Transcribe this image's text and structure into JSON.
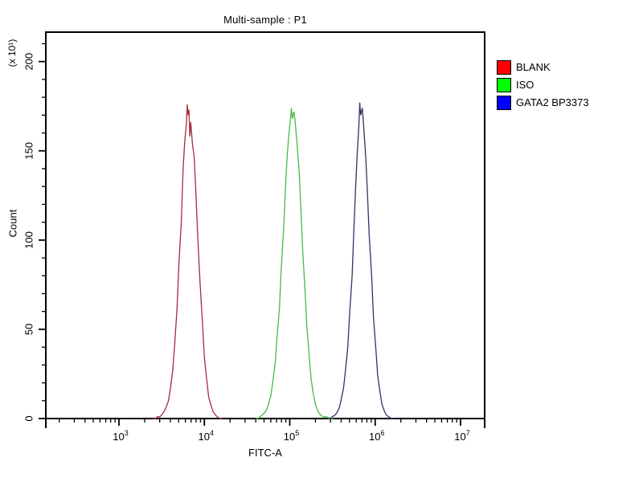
{
  "window": {
    "background": "#ffffff"
  },
  "chart_data": {
    "type": "line",
    "title": "Multi-sample : P1",
    "xlabel": "FITC-A",
    "ylabel": "Count",
    "y_multiplier_label": "(x 10¹)",
    "x_scale": "log10",
    "x_range_log": [
      2.1435,
      7.2824
    ],
    "x_ticks_exponents": [
      3,
      4,
      5,
      6,
      7
    ],
    "y_ticks": [
      0,
      50,
      100,
      150,
      200
    ],
    "y_minor_step": 10,
    "y_minor_max": 210,
    "ylim": [
      0,
      216.5
    ],
    "grid": false,
    "legend_position": "right-outside",
    "axis_color": "#000000",
    "series": [
      {
        "name": "BLANK",
        "legend_color": "#ff0000",
        "line_color": "#a52a3a",
        "points": [
          [
            3.4,
            0
          ],
          [
            3.43,
            0
          ],
          [
            3.45,
            1
          ],
          [
            3.48,
            1
          ],
          [
            3.5,
            2
          ],
          [
            3.53,
            4
          ],
          [
            3.55,
            6
          ],
          [
            3.58,
            10
          ],
          [
            3.6,
            16
          ],
          [
            3.63,
            27
          ],
          [
            3.65,
            40
          ],
          [
            3.68,
            62
          ],
          [
            3.7,
            85
          ],
          [
            3.73,
            110
          ],
          [
            3.75,
            139
          ],
          [
            3.77,
            155
          ],
          [
            3.79,
            165
          ],
          [
            3.8,
            176
          ],
          [
            3.81,
            170
          ],
          [
            3.82,
            173
          ],
          [
            3.83,
            158
          ],
          [
            3.84,
            166
          ],
          [
            3.86,
            154
          ],
          [
            3.88,
            147
          ],
          [
            3.9,
            128
          ],
          [
            3.92,
            104
          ],
          [
            3.95,
            76
          ],
          [
            3.98,
            52
          ],
          [
            4.0,
            34
          ],
          [
            4.03,
            21
          ],
          [
            4.05,
            12
          ],
          [
            4.08,
            7
          ],
          [
            4.1,
            4
          ],
          [
            4.13,
            2
          ],
          [
            4.15,
            1
          ],
          [
            4.18,
            0
          ],
          [
            4.21,
            0
          ]
        ]
      },
      {
        "name": "ISO",
        "legend_color": "#00ff00",
        "line_color": "#44bb44",
        "points": [
          [
            4.6,
            0
          ],
          [
            4.63,
            0
          ],
          [
            4.65,
            1
          ],
          [
            4.68,
            2
          ],
          [
            4.7,
            3
          ],
          [
            4.73,
            5
          ],
          [
            4.75,
            8
          ],
          [
            4.78,
            13
          ],
          [
            4.8,
            20
          ],
          [
            4.83,
            31
          ],
          [
            4.85,
            45
          ],
          [
            4.88,
            62
          ],
          [
            4.9,
            84
          ],
          [
            4.93,
            108
          ],
          [
            4.95,
            130
          ],
          [
            4.97,
            147
          ],
          [
            4.99,
            159
          ],
          [
            5.01,
            169
          ],
          [
            5.02,
            174
          ],
          [
            5.03,
            168
          ],
          [
            5.05,
            172
          ],
          [
            5.07,
            163
          ],
          [
            5.09,
            151
          ],
          [
            5.11,
            138
          ],
          [
            5.13,
            118
          ],
          [
            5.15,
            96
          ],
          [
            5.18,
            71
          ],
          [
            5.2,
            52
          ],
          [
            5.23,
            34
          ],
          [
            5.25,
            22
          ],
          [
            5.28,
            13
          ],
          [
            5.3,
            8
          ],
          [
            5.33,
            4
          ],
          [
            5.36,
            2
          ],
          [
            5.39,
            1
          ],
          [
            5.43,
            1
          ],
          [
            5.47,
            0
          ],
          [
            5.51,
            0
          ]
        ]
      },
      {
        "name": "GATA2 BP3373",
        "legend_color": "#0000ff",
        "line_color": "#333366",
        "points": [
          [
            5.44,
            0
          ],
          [
            5.47,
            0
          ],
          [
            5.5,
            1
          ],
          [
            5.53,
            2
          ],
          [
            5.55,
            3
          ],
          [
            5.58,
            6
          ],
          [
            5.6,
            10
          ],
          [
            5.63,
            17
          ],
          [
            5.65,
            26
          ],
          [
            5.68,
            40
          ],
          [
            5.7,
            58
          ],
          [
            5.73,
            80
          ],
          [
            5.75,
            105
          ],
          [
            5.77,
            128
          ],
          [
            5.79,
            148
          ],
          [
            5.81,
            165
          ],
          [
            5.82,
            177
          ],
          [
            5.83,
            170
          ],
          [
            5.85,
            174
          ],
          [
            5.87,
            161
          ],
          [
            5.89,
            146
          ],
          [
            5.91,
            126
          ],
          [
            5.93,
            103
          ],
          [
            5.96,
            79
          ],
          [
            5.98,
            57
          ],
          [
            6.01,
            38
          ],
          [
            6.03,
            24
          ],
          [
            6.06,
            14
          ],
          [
            6.08,
            8
          ],
          [
            6.11,
            4
          ],
          [
            6.13,
            2
          ],
          [
            6.16,
            1
          ],
          [
            6.19,
            0
          ],
          [
            6.22,
            0
          ]
        ]
      }
    ]
  }
}
